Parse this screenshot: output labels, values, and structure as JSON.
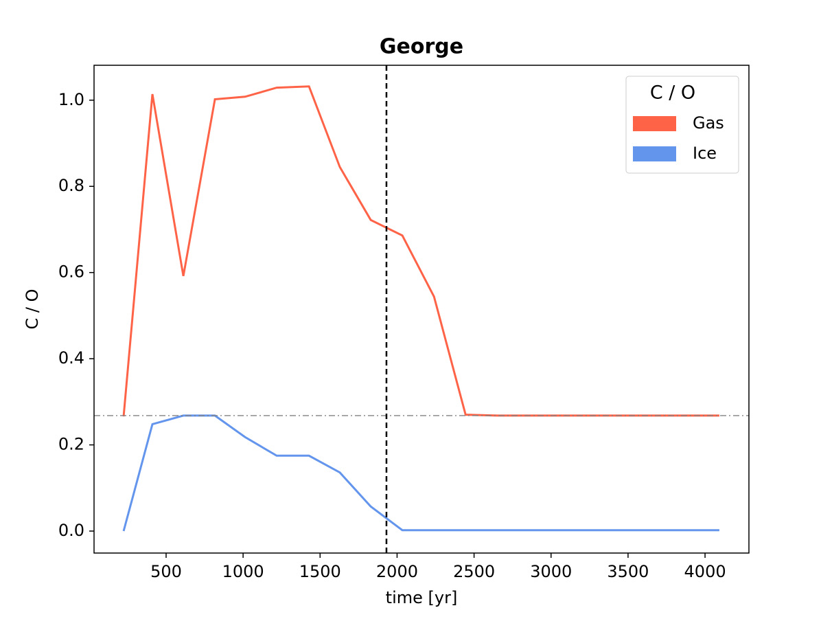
{
  "chart_data": {
    "type": "line",
    "title": "George",
    "x_label": "time [yr]",
    "y_label": "C / O",
    "x": [
      224,
      411,
      612,
      817,
      1013,
      1218,
      1428,
      1628,
      1829,
      2034,
      2240,
      2445,
      2650,
      2855,
      3060,
      3265,
      3470,
      3675,
      3880,
      4093
    ],
    "series": [
      {
        "name": "Gas",
        "color": "#ff6347",
        "values": [
          0.266,
          1.014,
          0.592,
          1.002,
          1.008,
          1.029,
          1.032,
          0.845,
          0.722,
          0.686,
          0.544,
          0.27,
          0.268,
          0.268,
          0.268,
          0.268,
          0.268,
          0.268,
          0.268,
          0.268
        ]
      },
      {
        "name": "Ice",
        "color": "#6495ed",
        "values": [
          0.0,
          0.248,
          0.268,
          0.268,
          0.218,
          0.175,
          0.175,
          0.136,
          0.057,
          0.002,
          0.002,
          0.002,
          0.002,
          0.002,
          0.002,
          0.002,
          0.002,
          0.002,
          0.002,
          0.002
        ]
      }
    ],
    "legend_title": "C / O",
    "legend_position": "upper right",
    "vline": 1931,
    "hline": 0.268,
    "xlim": [
      32,
      4285
    ],
    "ylim": [
      -0.051,
      1.081
    ],
    "xticks": [
      500,
      1000,
      1500,
      2000,
      2500,
      3000,
      3500,
      4000
    ],
    "yticks": [
      {
        "value": 0,
        "label": "0.0"
      },
      0.2,
      0.4,
      0.6,
      0.8,
      {
        "value": 1,
        "label": "1.0"
      }
    ],
    "grid": false
  }
}
